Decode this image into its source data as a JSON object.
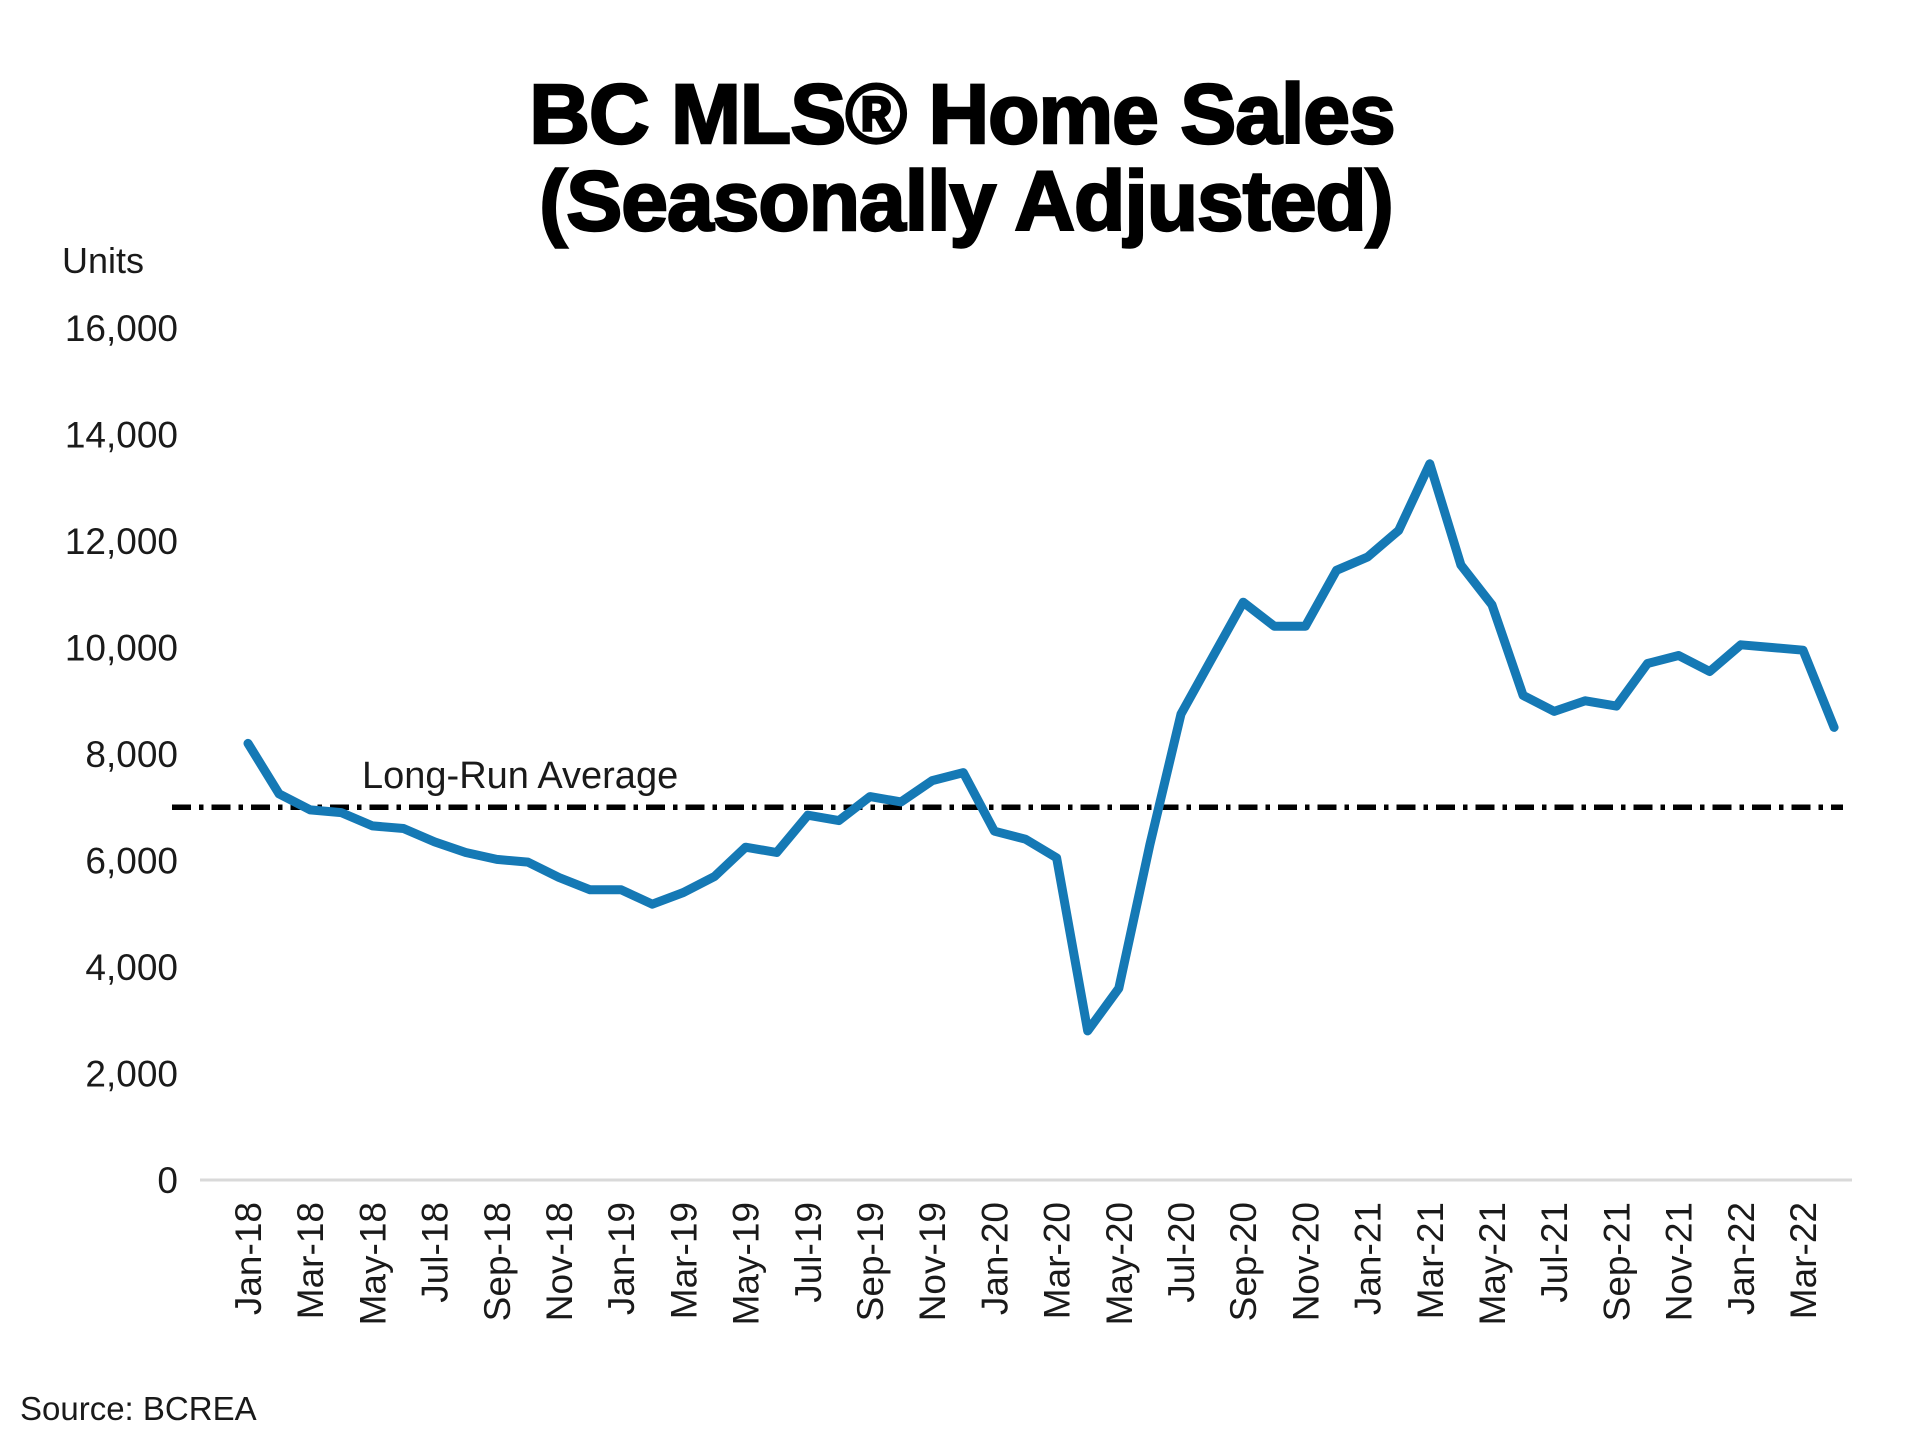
{
  "header": {
    "title_line1": "BC MLS® Home Sales",
    "title_line2": "(Seasonally Adjusted)"
  },
  "footer": {
    "source": "Source: BCREA"
  },
  "colors": {
    "line": "#1579B5",
    "axis_baseline": "#D9D9D9",
    "annotation_line": "#000000",
    "text": "#000000"
  },
  "chart_data": {
    "type": "line",
    "title": "BC MLS® Home Sales (Seasonally Adjusted)",
    "xlabel": "",
    "ylabel": "Units",
    "ylim": [
      0,
      16000
    ],
    "grid": false,
    "legend": "none",
    "series_name": "BC MLS home sales, seasonally adjusted (units)",
    "x": [
      "Jan-18",
      "Feb-18",
      "Mar-18",
      "Apr-18",
      "May-18",
      "Jun-18",
      "Jul-18",
      "Aug-18",
      "Sep-18",
      "Oct-18",
      "Nov-18",
      "Dec-18",
      "Jan-19",
      "Feb-19",
      "Mar-19",
      "Apr-19",
      "May-19",
      "Jun-19",
      "Jul-19",
      "Aug-19",
      "Sep-19",
      "Oct-19",
      "Nov-19",
      "Dec-19",
      "Jan-20",
      "Feb-20",
      "Mar-20",
      "Apr-20",
      "May-20",
      "Jun-20",
      "Jul-20",
      "Aug-20",
      "Sep-20",
      "Oct-20",
      "Nov-20",
      "Dec-20",
      "Jan-21",
      "Feb-21",
      "Mar-21",
      "Apr-21",
      "May-21",
      "Jun-21",
      "Jul-21",
      "Aug-21",
      "Sep-21",
      "Oct-21",
      "Nov-21",
      "Dec-21",
      "Jan-22",
      "Feb-22",
      "Mar-22",
      "Apr-22"
    ],
    "values": [
      8200,
      7250,
      6950,
      6900,
      6650,
      6600,
      6350,
      6150,
      6020,
      5970,
      5680,
      5450,
      5450,
      5180,
      5400,
      5700,
      6250,
      6150,
      6850,
      6750,
      7200,
      7100,
      7500,
      7650,
      6550,
      6400,
      6050,
      2800,
      3600,
      6300,
      8750,
      9800,
      10850,
      10400,
      10400,
      11450,
      11700,
      12200,
      13450,
      11550,
      10800,
      9100,
      8800,
      9000,
      8900,
      9700,
      9850,
      9550,
      10050,
      10000,
      9950,
      8500
    ],
    "y_ticks": [
      {
        "value": 0,
        "label": "0"
      },
      {
        "value": 2000,
        "label": "2,000"
      },
      {
        "value": 4000,
        "label": "4,000"
      },
      {
        "value": 6000,
        "label": "6,000"
      },
      {
        "value": 8000,
        "label": "8,000"
      },
      {
        "value": 10000,
        "label": "10,000"
      },
      {
        "value": 12000,
        "label": "12,000"
      },
      {
        "value": 14000,
        "label": "14,000"
      },
      {
        "value": 16000,
        "label": "16,000"
      }
    ],
    "x_tick_every": 2,
    "x_tick_labels": [
      "Jan-18",
      "Mar-18",
      "May-18",
      "Jul-18",
      "Sep-18",
      "Nov-18",
      "Jan-19",
      "Mar-19",
      "May-19",
      "Jul-19",
      "Sep-19",
      "Nov-19",
      "Jan-20",
      "Mar-20",
      "May-20",
      "Jul-20",
      "Sep-20",
      "Nov-20",
      "Jan-21",
      "Mar-21",
      "May-21",
      "Jul-21",
      "Sep-21",
      "Nov-21",
      "Jan-22",
      "Mar-22"
    ],
    "annotation": {
      "label": "Long-Run Average",
      "value": 7000,
      "style": "dash-dot"
    }
  }
}
